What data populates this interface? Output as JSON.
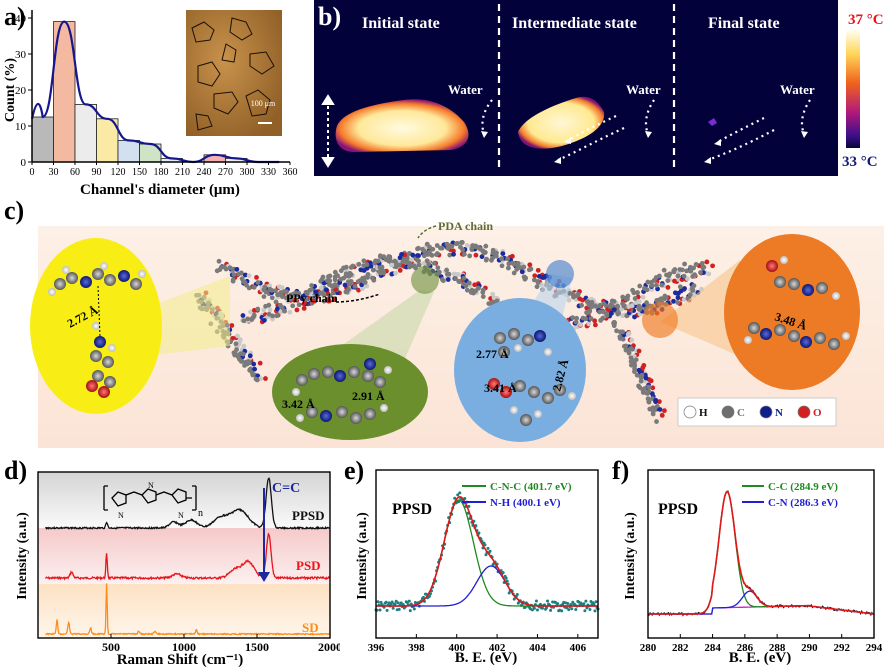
{
  "labels": {
    "a": "a)",
    "b": "b)",
    "c": "c)",
    "d": "d)",
    "e": "e)",
    "f": "f)"
  },
  "panel_a": {
    "ylabel": "Count (%)",
    "xlabel": "Channel's diameter (μm)",
    "scale_text": "100 μm",
    "chart_data": {
      "type": "bar",
      "categories": [
        "0-30",
        "30-60",
        "60-90",
        "90-120",
        "120-150",
        "150-180",
        "180-210",
        "210-240",
        "240-270",
        "270-300",
        "300-330",
        "330-360"
      ],
      "values": [
        12.5,
        39,
        16,
        12,
        6,
        5,
        1,
        0,
        2,
        1,
        0,
        0
      ],
      "ylim": [
        0,
        40
      ],
      "yticks": [
        "0",
        "10",
        "20",
        "30",
        "40"
      ],
      "xticks": [
        "0",
        "30",
        "60",
        "90",
        "120",
        "150",
        "180",
        "210",
        "240",
        "270",
        "300",
        "330",
        "360"
      ],
      "colors": [
        "#b9b9b9",
        "#f4b9a1",
        "#ececec",
        "#fbe9a6",
        "#d3e0ef",
        "#cfe3c5",
        "#dfeef7",
        "#ffffff",
        "#f7b0b0",
        "#eeeeee",
        "#ffffff",
        "#ffffff"
      ],
      "fit_color": "#16178c"
    }
  },
  "panel_b": {
    "states": [
      "Initial state",
      "Intermediate state",
      "Final state"
    ],
    "water": "Water",
    "temp_max": "37 °C",
    "temp_min": "33 °C"
  },
  "panel_c": {
    "pda_label": "PDA chain",
    "ppy_label": "PPy chain",
    "distances": [
      "2.72 Å",
      "3.42 Å",
      "2.91 Å",
      "2.77 Å",
      "3.41 Å",
      "2.82 Å",
      "3.48 Å"
    ],
    "legend": [
      "H",
      "C",
      "N",
      "O"
    ],
    "legend_colors": [
      "#ffffff",
      "#6e6e6e",
      "#0f1f8a",
      "#d31f1f"
    ]
  },
  "panel_d": {
    "ylabel": "Intensity (a.u.)",
    "xlabel": "Raman Shift (cm⁻¹)",
    "peak_label": "C=C",
    "series": [
      {
        "name": "PPSD",
        "color": "#111111"
      },
      {
        "name": "PSD",
        "color": "#e8141c"
      },
      {
        "name": "SD",
        "color": "#ff8c1a"
      }
    ],
    "xticks": [
      "500",
      "1000",
      "1500",
      "2000"
    ],
    "subscript": "n"
  },
  "panel_e": {
    "title": "PPSD",
    "ylabel": "Intensity (a.u.)",
    "xlabel": "B. E. (eV)",
    "legend": [
      {
        "name": "C-N-C (401.7 eV)",
        "color": "#1f8a1f"
      },
      {
        "name": "N-H (400.1 eV)",
        "color": "#1f1fd6"
      }
    ],
    "xticks": [
      "396",
      "398",
      "400",
      "402",
      "404",
      "406"
    ]
  },
  "panel_f": {
    "title": "PPSD",
    "ylabel": "Intensity (a.u.)",
    "xlabel": "B. E. (eV)",
    "legend": [
      {
        "name": "C-C (284.9 eV)",
        "color": "#1f8a1f"
      },
      {
        "name": "C-N (286.3 eV)",
        "color": "#1f1fd6"
      }
    ],
    "xticks": [
      "280",
      "282",
      "284",
      "286",
      "288",
      "290",
      "292",
      "294"
    ]
  }
}
